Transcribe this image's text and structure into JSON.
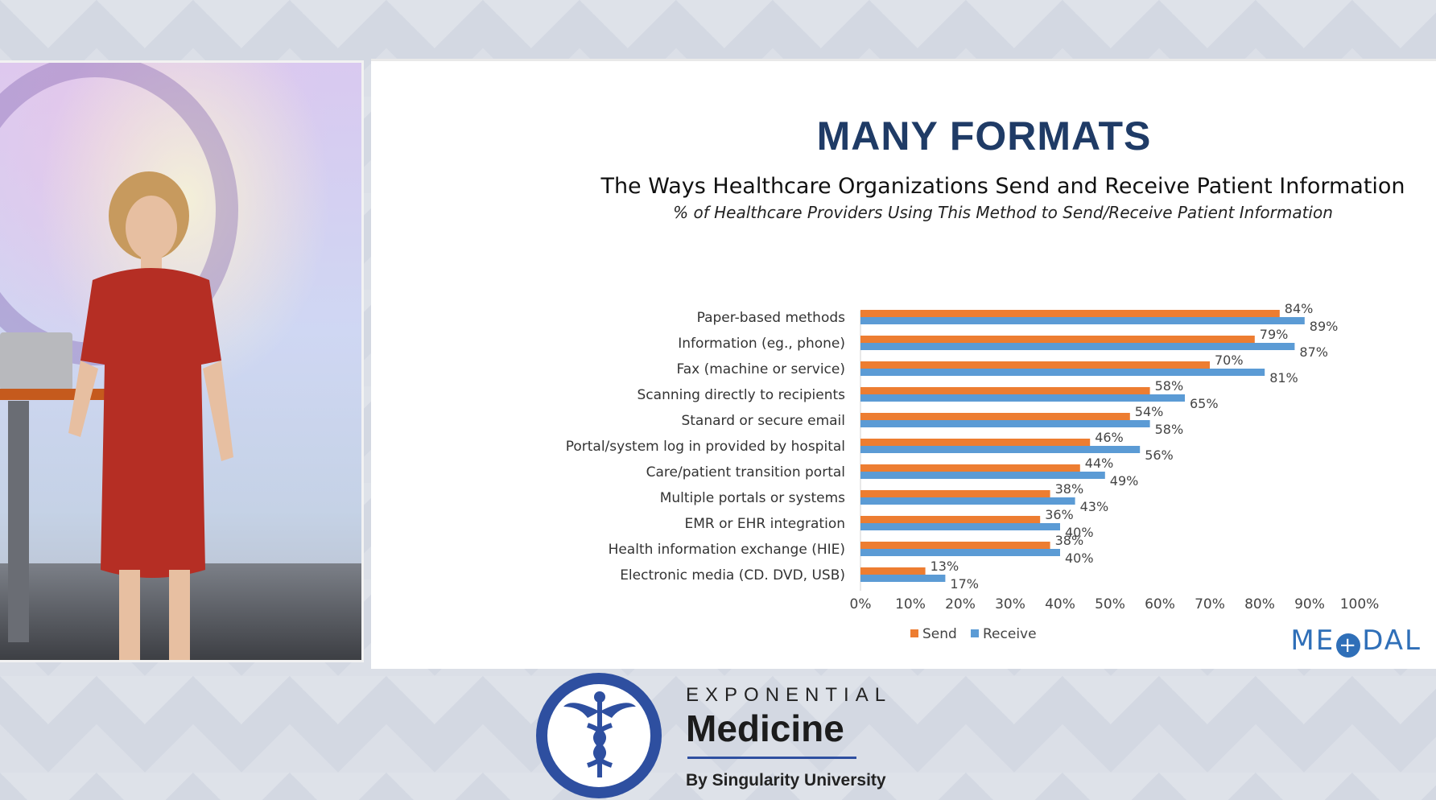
{
  "slide": {
    "heading": "MANY FORMATS",
    "logo_text_left": "ME",
    "logo_plus": "+",
    "logo_text_right": "DAL"
  },
  "brand": {
    "line1": "EXPONENTIAL",
    "line2": "Medicine",
    "line3": "By Singularity University"
  },
  "colors": {
    "send": "#ed7d31",
    "receive": "#5b9bd5",
    "heading": "#1f3b66",
    "brand_blue": "#2e4fa0"
  },
  "chart_data": {
    "type": "bar",
    "orientation": "horizontal",
    "title": "The Ways Healthcare Organizations Send and Receive Patient Information",
    "subtitle": "% of Healthcare Providers Using This Method to Send/Receive Patient Information",
    "categories": [
      "Paper-based methods",
      "Information (eg., phone)",
      "Fax (machine or service)",
      "Scanning directly to recipients",
      "Stanard or secure email",
      "Portal/system log in provided by hospital",
      "Care/patient transition portal",
      "Multiple portals or systems",
      "EMR or EHR integration",
      "Health information exchange (HIE)",
      "Electronic media (CD. DVD, USB)"
    ],
    "series": [
      {
        "name": "Send",
        "values": [
          84,
          79,
          70,
          58,
          54,
          46,
          44,
          38,
          36,
          38,
          13
        ],
        "labels": [
          "84%",
          "79%",
          "70%",
          "58%",
          "54%",
          "46%",
          "44%",
          "38%",
          "36%",
          "38%",
          "13%"
        ]
      },
      {
        "name": "Receive",
        "values": [
          89,
          87,
          81,
          65,
          58,
          56,
          49,
          43,
          40,
          40,
          17
        ],
        "labels": [
          "89%",
          "87%",
          "81%",
          "65%",
          "58%",
          "56%",
          "49%",
          "43%",
          "40%",
          "40%",
          "17%"
        ]
      }
    ],
    "xlim": [
      0,
      100
    ],
    "xticks": [
      "0%",
      "10%",
      "20%",
      "30%",
      "40%",
      "50%",
      "60%",
      "70%",
      "80%",
      "90%",
      "100%"
    ],
    "legend_position": "bottom",
    "grid": false
  }
}
